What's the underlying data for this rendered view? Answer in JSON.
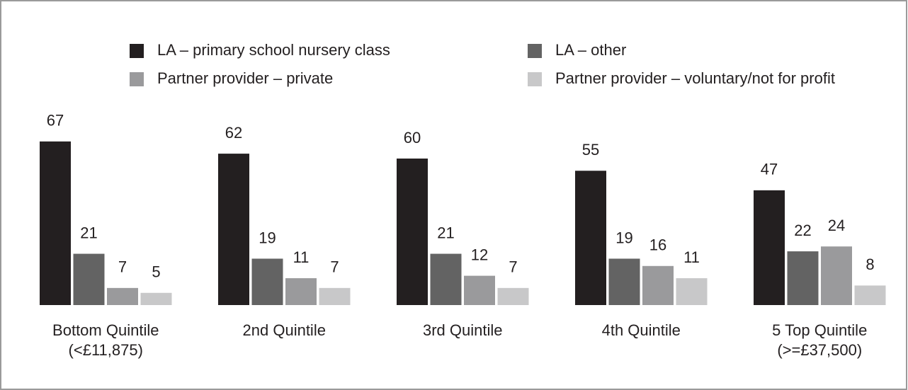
{
  "chart_data": {
    "type": "bar",
    "categories": [
      [
        "Bottom Quintile",
        "(<£11,875)"
      ],
      [
        "2nd Quintile"
      ],
      [
        "3rd Quintile"
      ],
      [
        "4th Quintile"
      ],
      [
        "5 Top Quintile",
        "(>=£37,500)"
      ]
    ],
    "series": [
      {
        "name": "LA – primary school nursery class",
        "color": "#231f20",
        "values": [
          67,
          62,
          60,
          55,
          47
        ]
      },
      {
        "name": "LA – other",
        "color": "#636363",
        "values": [
          21,
          19,
          21,
          19,
          22
        ]
      },
      {
        "name": "Partner provider – private",
        "color": "#9a9a9c",
        "values": [
          7,
          11,
          12,
          16,
          24
        ]
      },
      {
        "name": "Partner provider – voluntary/not for profit",
        "color": "#c8c8c9",
        "values": [
          5,
          7,
          7,
          11,
          8
        ]
      }
    ],
    "legend": "top"
  }
}
